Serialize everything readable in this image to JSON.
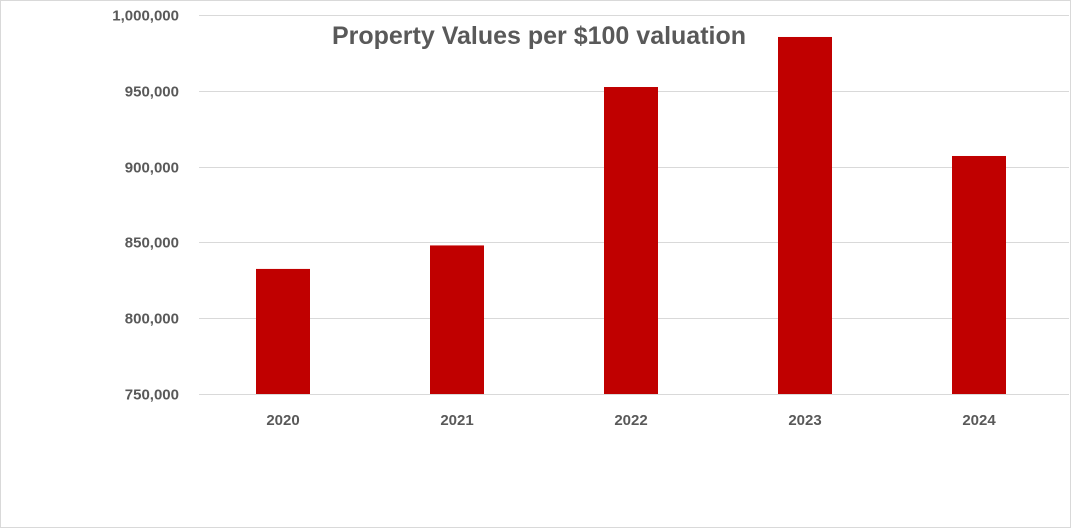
{
  "chart_data": {
    "type": "bar",
    "title": "Property Values per $100 valuation",
    "xlabel": "",
    "ylabel": "",
    "categories": [
      "2020",
      "2021",
      "2022",
      "2023",
      "2024"
    ],
    "values": [
      832500,
      848000,
      952500,
      985500,
      907000
    ],
    "ylim": [
      750000,
      1000000
    ],
    "y_ticks": [
      750000,
      800000,
      850000,
      900000,
      950000,
      1000000
    ],
    "y_tick_labels": [
      "750,000",
      "800,000",
      "850,000",
      "900,000",
      "950,000",
      "1,000,000"
    ],
    "grid": true,
    "legend": "none",
    "bar_color": "#c00000",
    "grid_color": "#d9d9d9",
    "text_color": "#595959"
  }
}
